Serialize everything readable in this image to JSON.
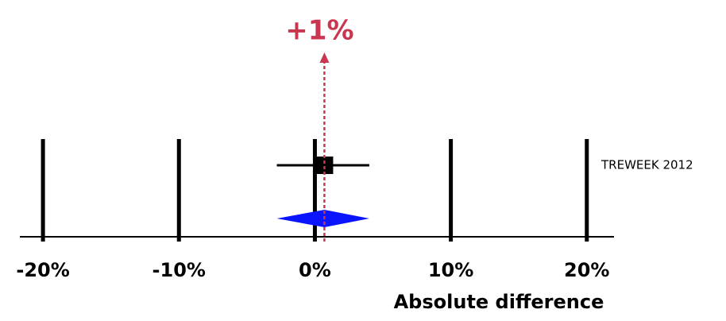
{
  "chart_data": {
    "type": "forest",
    "xlim": [
      -21.7,
      22
    ],
    "xticks": [
      {
        "value": -20,
        "label": "-20%"
      },
      {
        "value": -10,
        "label": "-10%"
      },
      {
        "value": 0,
        "label": "0%"
      },
      {
        "value": 10,
        "label": "10%"
      },
      {
        "value": 20,
        "label": "20%"
      }
    ],
    "xlabel": "Absolute difference",
    "studies": [
      {
        "name": "TREWEEK 2012",
        "estimate": 0.7,
        "ci": [
          -2.8,
          4
        ]
      }
    ],
    "pooled": {
      "estimate": 0.7,
      "ci": [
        -2.8,
        4
      ],
      "color": "#0a14ff"
    },
    "annotation": {
      "label": "+1%",
      "value": 0.7,
      "color": "#c8374f"
    }
  }
}
